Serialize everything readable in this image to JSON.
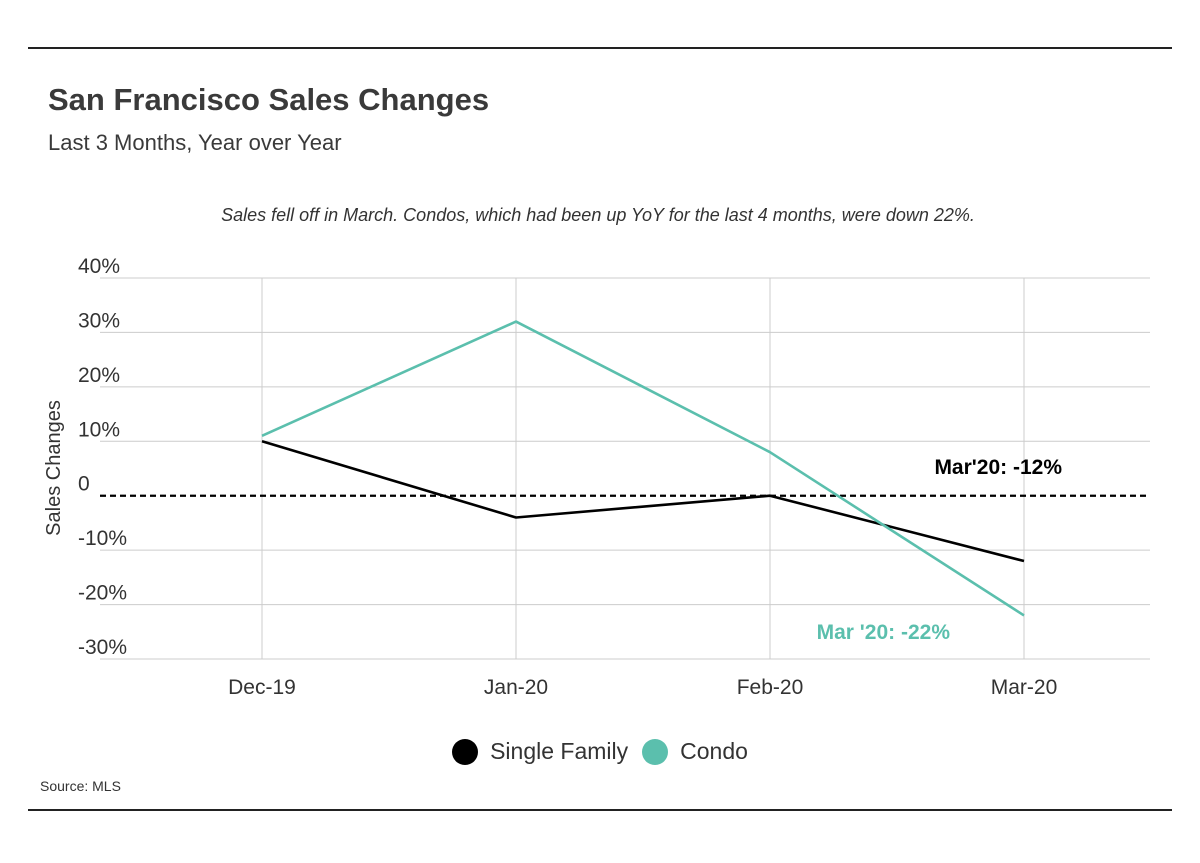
{
  "header": {
    "title": "San Francisco Sales Changes",
    "subtitle": "Last 3 Months, Year over Year"
  },
  "source": "Source: MLS",
  "colors": {
    "single_family": "#000000",
    "condo": "#5bbfad",
    "grid": "#cccccc",
    "text": "#333333"
  },
  "chart_data": {
    "type": "line",
    "annotation_top": "Sales fell off in March. Condos, which had been up YoY for the last 4 months, were down 22%.",
    "ylabel": "Sales Changes",
    "xlabel": "",
    "categories": [
      "Dec-19",
      "Jan-20",
      "Feb-20",
      "Mar-20"
    ],
    "ylim": [
      -30,
      40
    ],
    "yticks": [
      40,
      30,
      20,
      10,
      0,
      -10,
      -20,
      -30
    ],
    "ytick_labels": [
      "40%",
      "30%",
      "20%",
      "10%",
      "0",
      "-10%",
      "-20%",
      "-30%"
    ],
    "grid": true,
    "zero_line": "dashed",
    "legend_position": "bottom-center",
    "series": [
      {
        "name": "Single Family",
        "color": "#000000",
        "values": [
          10,
          -4,
          0,
          -12
        ]
      },
      {
        "name": "Condo",
        "color": "#5bbfad",
        "values": [
          11,
          32,
          8,
          -22
        ]
      }
    ],
    "point_labels": [
      {
        "series": "Single Family",
        "category": "Mar-20",
        "text": "Mar'20: -12%"
      },
      {
        "series": "Condo",
        "category": "Mar-20",
        "text": "Mar '20: -22%"
      }
    ]
  }
}
